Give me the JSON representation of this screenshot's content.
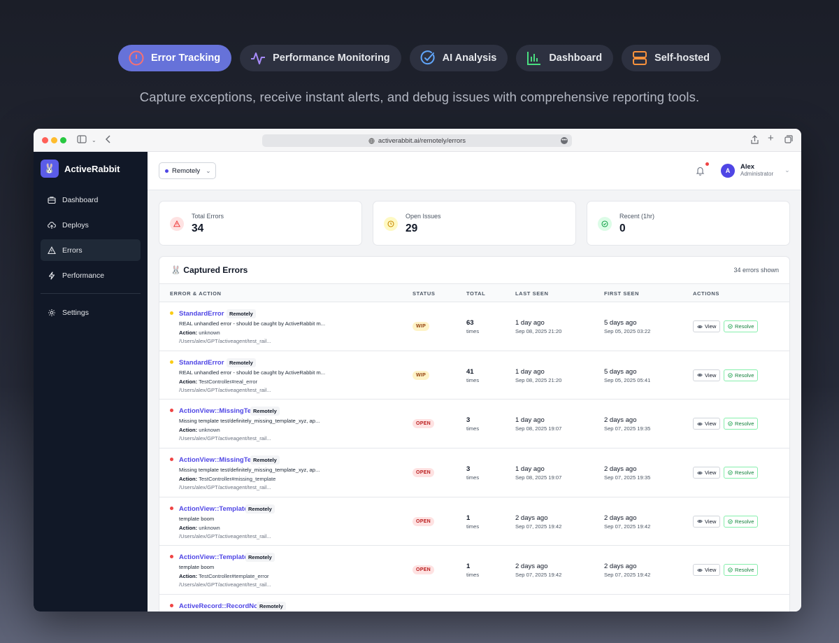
{
  "features": [
    {
      "label": "Error Tracking",
      "icon": "clock-alert-icon",
      "active": true
    },
    {
      "label": "Performance Monitoring",
      "icon": "activity-icon",
      "active": false
    },
    {
      "label": "AI Analysis",
      "icon": "check-circle-icon",
      "active": false
    },
    {
      "label": "Dashboard",
      "icon": "bar-chart-icon",
      "active": false
    },
    {
      "label": "Self-hosted",
      "icon": "server-icon",
      "active": false
    }
  ],
  "tagline": "Capture exceptions, receive instant alerts, and debug issues with comprehensive reporting tools.",
  "browser": {
    "url": "activerabbit.ai/remotely/errors"
  },
  "sidebar": {
    "brand": "ActiveRabbit",
    "items": [
      {
        "label": "Dashboard",
        "icon": "briefcase-icon"
      },
      {
        "label": "Deploys",
        "icon": "cloud-upload-icon"
      },
      {
        "label": "Errors",
        "icon": "warning-icon"
      },
      {
        "label": "Performance",
        "icon": "lightning-icon"
      }
    ],
    "settings": {
      "label": "Settings",
      "icon": "gear-icon"
    }
  },
  "topbar": {
    "project": "Remotely",
    "user": {
      "initial": "A",
      "name": "Alex",
      "role": "Administrator"
    }
  },
  "stats": [
    {
      "label": "Total Errors",
      "value": "34",
      "color": "#ef4444"
    },
    {
      "label": "Open Issues",
      "value": "29",
      "color": "#ca8a04"
    },
    {
      "label": "Recent (1hr)",
      "value": "0",
      "color": "#16a34a"
    }
  ],
  "table": {
    "title": "🐰 Captured Errors",
    "count": "34 errors shown",
    "columns": {
      "error": "ERROR & ACTION",
      "status": "STATUS",
      "total": "TOTAL",
      "last": "LAST SEEN",
      "first": "FIRST SEEN",
      "actions": "ACTIONS"
    },
    "view_label": "View",
    "resolve_label": "Resolve",
    "action_prefix": "Action:",
    "rows": [
      {
        "name": "StandardError",
        "env": "Remotely",
        "msg": "REAL unhandled error - should be caught by ActiveRabbit m...",
        "action": "unknown",
        "path": "/Users/alex/GPT/activeagent/test_rail...",
        "status": "WIP",
        "total": "63",
        "unit": "times",
        "last": "1 day ago",
        "last_ts": "Sep 08, 2025 21:20",
        "first": "5 days ago",
        "first_ts": "Sep 05, 2025 03:22",
        "sev": "#facc15"
      },
      {
        "name": "StandardError",
        "env": "Remotely",
        "msg": "REAL unhandled error - should be caught by ActiveRabbit m...",
        "action": "TestController#real_error",
        "path": "/Users/alex/GPT/activeagent/test_rail...",
        "status": "WIP",
        "total": "41",
        "unit": "times",
        "last": "1 day ago",
        "last_ts": "Sep 08, 2025 21:20",
        "first": "5 days ago",
        "first_ts": "Sep 05, 2025 05:41",
        "sev": "#facc15"
      },
      {
        "name": "ActionView::MissingTemplate",
        "env": "Remotely",
        "msg": "Missing template test/definitely_missing_template_xyz, ap...",
        "action": "unknown",
        "path": "/Users/alex/GPT/activeagent/test_rail...",
        "status": "OPEN",
        "total": "3",
        "unit": "times",
        "last": "1 day ago",
        "last_ts": "Sep 08, 2025 19:07",
        "first": "2 days ago",
        "first_ts": "Sep 07, 2025 19:35",
        "sev": "#ef4444"
      },
      {
        "name": "ActionView::MissingTemplate",
        "env": "Remotely",
        "msg": "Missing template test/definitely_missing_template_xyz, ap...",
        "action": "TestController#missing_template",
        "path": "/Users/alex/GPT/activeagent/test_rail...",
        "status": "OPEN",
        "total": "3",
        "unit": "times",
        "last": "1 day ago",
        "last_ts": "Sep 08, 2025 19:07",
        "first": "2 days ago",
        "first_ts": "Sep 07, 2025 19:35",
        "sev": "#ef4444"
      },
      {
        "name": "ActionView::Template::Error",
        "env": "Remotely",
        "msg": "template boom",
        "action": "unknown",
        "path": "/Users/alex/GPT/activeagent/test_rail...",
        "status": "OPEN",
        "total": "1",
        "unit": "times",
        "last": "2 days ago",
        "last_ts": "Sep 07, 2025 19:42",
        "first": "2 days ago",
        "first_ts": "Sep 07, 2025 19:42",
        "sev": "#ef4444"
      },
      {
        "name": "ActionView::Template::Error",
        "env": "Remotely",
        "msg": "template boom",
        "action": "TestController#template_error",
        "path": "/Users/alex/GPT/activeagent/test_rail...",
        "status": "OPEN",
        "total": "1",
        "unit": "times",
        "last": "2 days ago",
        "last_ts": "Sep 07, 2025 19:42",
        "first": "2 days ago",
        "first_ts": "Sep 07, 2025 19:42",
        "sev": "#ef4444"
      },
      {
        "name": "ActiveRecord::RecordNotFound",
        "env": "Remotely",
        "msg": "",
        "action": "",
        "path": "",
        "status": "",
        "total": "",
        "unit": "",
        "last": "",
        "last_ts": "",
        "first": "",
        "first_ts": "",
        "sev": "#ef4444"
      }
    ]
  }
}
